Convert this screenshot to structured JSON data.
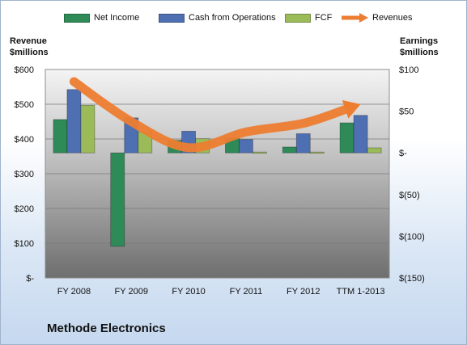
{
  "company": "Methode Electronics",
  "colors": {
    "net_income": "#2e8b57",
    "cash_from_operations": "#4f6fb3",
    "fcf": "#9bbb59",
    "revenues": "#ed7d31"
  },
  "chart_data": {
    "type": "bar",
    "categories": [
      "FY 2008",
      "FY 2009",
      "FY 2010",
      "FY 2011",
      "FY 2012",
      "TTM 1-2013"
    ],
    "left_axis": {
      "label_line1": "Revenue",
      "label_line2": "$millions",
      "ticks": [
        "$-",
        "$100",
        "$200",
        "$300",
        "$400",
        "$500",
        "$600"
      ],
      "ylim": [
        0,
        600
      ]
    },
    "right_axis": {
      "label_line1": "Earnings",
      "label_line2": "$millions",
      "ticks": [
        "$(150)",
        "$(100)",
        "$(50)",
        "$-",
        "$50",
        "$100"
      ],
      "ylim": [
        -150,
        100
      ]
    },
    "series": [
      {
        "name": "Net Income",
        "axis": "right",
        "type": "bar",
        "values": [
          40,
          -112,
          15,
          18,
          7,
          36
        ]
      },
      {
        "name": "Cash from Operations",
        "axis": "right",
        "type": "bar",
        "values": [
          76,
          42,
          26,
          16,
          23,
          45
        ]
      },
      {
        "name": "FCF",
        "axis": "right",
        "type": "bar",
        "values": [
          57,
          25,
          17,
          1,
          1,
          6
        ]
      },
      {
        "name": "Revenues",
        "axis": "left",
        "type": "line",
        "values": [
          565,
          450,
          375,
          420,
          445,
          500
        ]
      }
    ],
    "grid": true,
    "legend": "top"
  }
}
